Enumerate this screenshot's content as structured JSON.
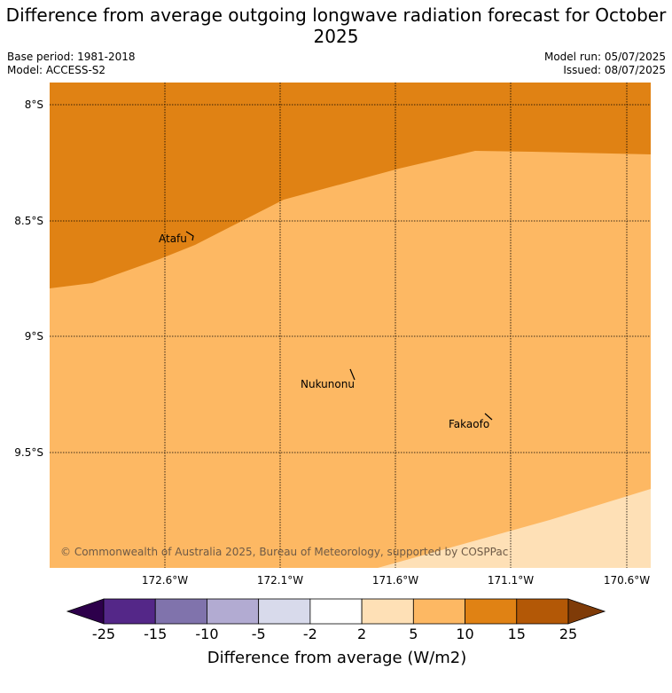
{
  "title": "Difference from average outgoing longwave radiation forecast for October 2025",
  "meta_left": {
    "base_period": "Base period: 1981-2018",
    "model": "Model: ACCESS-S2"
  },
  "meta_right": {
    "model_run": "Model run: 05/07/2025",
    "issued": "Issued: 08/07/2025"
  },
  "map": {
    "lat_labels": [
      "8°S",
      "8.5°S",
      "9°S",
      "9.5°S"
    ],
    "lon_labels": [
      "172.6°W",
      "172.1°W",
      "171.6°W",
      "171.1°W",
      "170.6°W"
    ],
    "places": [
      {
        "name": "Atafu"
      },
      {
        "name": "Nukunonu"
      },
      {
        "name": "Fakaofo"
      }
    ],
    "copyright": "© Commonwealth of Australia 2025, Bureau of Meteorology, supported by COSPPac",
    "region_colors": {
      "band_10_15": "#e08214",
      "band_5_10": "#fdb863",
      "band_2_5": "#fee0b6"
    }
  },
  "colorbar": {
    "title": "Difference from average (W/m2)",
    "ticks": [
      "-25",
      "-15",
      "-10",
      "-5",
      "-2",
      "2",
      "5",
      "10",
      "15",
      "25"
    ],
    "colors": [
      "#2d004b",
      "#542788",
      "#8073ac",
      "#b2abd2",
      "#d8daeb",
      "#ffffff",
      "#fee0b6",
      "#fdb863",
      "#e08214",
      "#b35806",
      "#7f3b08"
    ]
  }
}
